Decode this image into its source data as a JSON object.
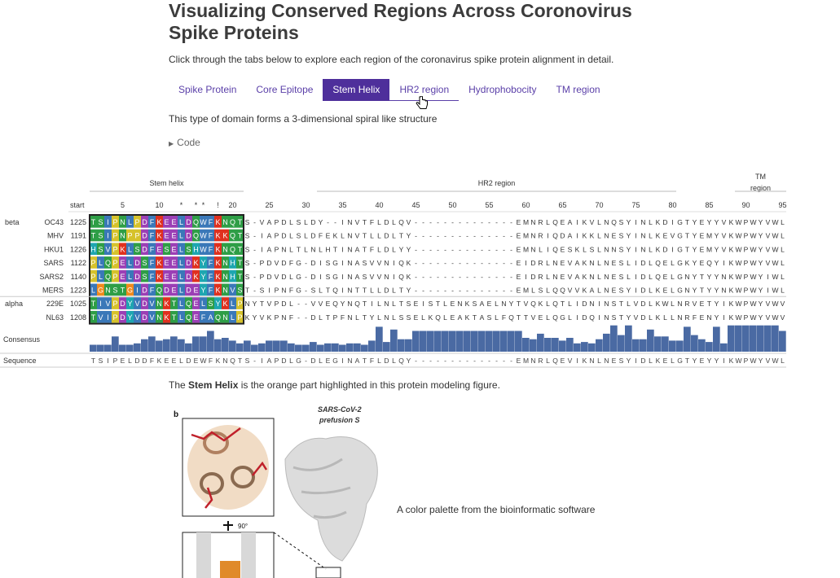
{
  "page": {
    "title": "Visualizing Conserved Regions Across Coronovirus Spike Proteins",
    "intro": "Click through the tabs below to explore each region of the coronavirus spike protein alignment in detail.",
    "tabs": [
      {
        "label": "Spike Protein"
      },
      {
        "label": "Core Epitope"
      },
      {
        "label": "Stem Helix"
      },
      {
        "label": "HR2 region"
      },
      {
        "label": "Hydrophobocity"
      },
      {
        "label": "TM region"
      }
    ],
    "active_tab": "Stem Helix",
    "description": "This type of domain forms a 3-dimensional spiral like structure",
    "code_toggle": "Code",
    "figure_note_pre": "The ",
    "figure_note_bold": "Stem Helix",
    "figure_note_post": " is the orange part highlighted in this protein modeling figure.",
    "palette_note": "A color palette from the bioinformatic software"
  },
  "alignment": {
    "regions": [
      {
        "label": "Stem helix",
        "from": 1,
        "to": 21
      },
      {
        "label": "HR2 region",
        "from": 32,
        "to": 80
      },
      {
        "label": "TM",
        "label2": "region",
        "from": 89,
        "to": 95
      }
    ],
    "start_label": "start",
    "ticks": [
      {
        "pos": 5,
        "label": "5"
      },
      {
        "pos": 10,
        "label": "10"
      },
      {
        "pos": 13,
        "label": "*"
      },
      {
        "pos": 15,
        "label": "*"
      },
      {
        "pos": 16,
        "label": "*"
      },
      {
        "pos": 18,
        "label": "!"
      },
      {
        "pos": 20,
        "label": "20"
      },
      {
        "pos": 25,
        "label": "25"
      },
      {
        "pos": 30,
        "label": "30"
      },
      {
        "pos": 35,
        "label": "35"
      },
      {
        "pos": 40,
        "label": "40"
      },
      {
        "pos": 45,
        "label": "45"
      },
      {
        "pos": 50,
        "label": "50"
      },
      {
        "pos": 55,
        "label": "55"
      },
      {
        "pos": 60,
        "label": "60"
      },
      {
        "pos": 65,
        "label": "65"
      },
      {
        "pos": 70,
        "label": "70"
      },
      {
        "pos": 75,
        "label": "75"
      },
      {
        "pos": 80,
        "label": "80"
      },
      {
        "pos": 85,
        "label": "85"
      },
      {
        "pos": 90,
        "label": "90"
      },
      {
        "pos": 95,
        "label": "95"
      }
    ],
    "groups": [
      {
        "name": "beta",
        "rows": [
          0,
          5
        ]
      },
      {
        "name": "alpha",
        "rows": [
          6,
          7
        ]
      }
    ],
    "sequences": [
      {
        "name": "OC43",
        "start": "1225",
        "seq": "TSIPNLPDFKEELDQWFKNQTS-VAPDLSLDY--INVTFLDLQV--------------EMNRLQEAIKVLNQSYINLKDIGTYEYYVKWPWYVWL"
      },
      {
        "name": "MHV",
        "start": "1191",
        "seq": "TSIPNPPDFKEELDQWFKKQTS-IAPDLSLDFEKLNVTLLDLTY--------------EMNRIQDAIKKLNESYINLKEVGTYEMYVKWPWYVWL"
      },
      {
        "name": "HKU1",
        "start": "1226",
        "seq": "HSVPKLSDFESELSHWFKNQTS-IAPNLTLNLHTINATFLDLYY--------------EMNLIQESKLSLNNSYINLKDIGTYEMYVKWPWYVWL"
      },
      {
        "name": "SARS",
        "start": "1122",
        "seq": "PLQPELDSFKEELDKYFKNHTS-PDVDFG-DISGINASVVNIQK--------------EIDRLNEVAKNLNESLIDLQELGKYEQYIKWPWYVWL"
      },
      {
        "name": "SARS2",
        "start": "1140",
        "seq": "PLQPELDSFKEELDKYFKNHTS-PDVDLG-DISGINASVVNIQK--------------EIDRLNEVAKNLNESLIDLQELGNYTYYNKWPWYIWL"
      },
      {
        "name": "MERS",
        "start": "1223",
        "seq": "LGNSTGIDFQDELDEYFKNVST-SIPNFG-SLTQINTTLLDLTY--------------EMLSLQQVVKALNESYIDLKELGNYTYYNKWPWYIWL"
      },
      {
        "name": "229E",
        "start": "1025",
        "seq": "TIVPDYVDVNKTLQELSYKLPNYTVPDL--VVEQYNQTILNLTSEISTLENKSAELNYTVQKLQTLIDNINSTLVDLKWLNRVETYIKWPWYVWV"
      },
      {
        "name": "NL63",
        "start": "1208",
        "seq": "TVIPDYVDVNKTLQEFAQNLPKYVKPNF--DLTPFNLTYLNLSSELKQLEAKTASLFQTTVELQGLIDQINSTYVDLKLLNRFENYIKWPWYVWV"
      }
    ],
    "consensus_label": "Consensus",
    "sequence_label": "Sequence",
    "consensus_sequence": "TSIPELDDFKEELDEWFKNQTS-IAPDLG-DLEGINATFLDLQY--------------EMNRLQEVIKNLNESYIDLKELGTYEYYIKWPWYVWL",
    "consensus_values": [
      0.25,
      0.25,
      0.25,
      0.55,
      0.25,
      0.25,
      0.3,
      0.45,
      0.55,
      0.4,
      0.45,
      0.55,
      0.45,
      0.3,
      0.55,
      0.55,
      0.75,
      0.45,
      0.5,
      0.4,
      0.3,
      0.4,
      0.25,
      0.3,
      0.4,
      0.4,
      0.4,
      0.3,
      0.25,
      0.25,
      0.35,
      0.25,
      0.3,
      0.3,
      0.25,
      0.3,
      0.3,
      0.25,
      0.4,
      0.9,
      0.35,
      0.8,
      0.45,
      0.45,
      0.75,
      0.75,
      0.75,
      0.75,
      0.75,
      0.75,
      0.75,
      0.75,
      0.75,
      0.75,
      0.75,
      0.75,
      0.75,
      0.75,
      0.75,
      0.5,
      0.45,
      0.65,
      0.5,
      0.5,
      0.4,
      0.5,
      0.3,
      0.35,
      0.3,
      0.45,
      0.65,
      0.95,
      0.6,
      0.95,
      0.45,
      0.45,
      0.8,
      0.55,
      0.55,
      0.4,
      0.4,
      0.9,
      0.6,
      0.45,
      0.35,
      0.9,
      0.3,
      0.95,
      0.95,
      0.95,
      0.95,
      0.95,
      0.95,
      0.95,
      0.75
    ]
  },
  "colors": {
    "accent": "#4e2f9b",
    "consensus_bar": "#4a6aa3",
    "highlight_border": "#222222"
  }
}
